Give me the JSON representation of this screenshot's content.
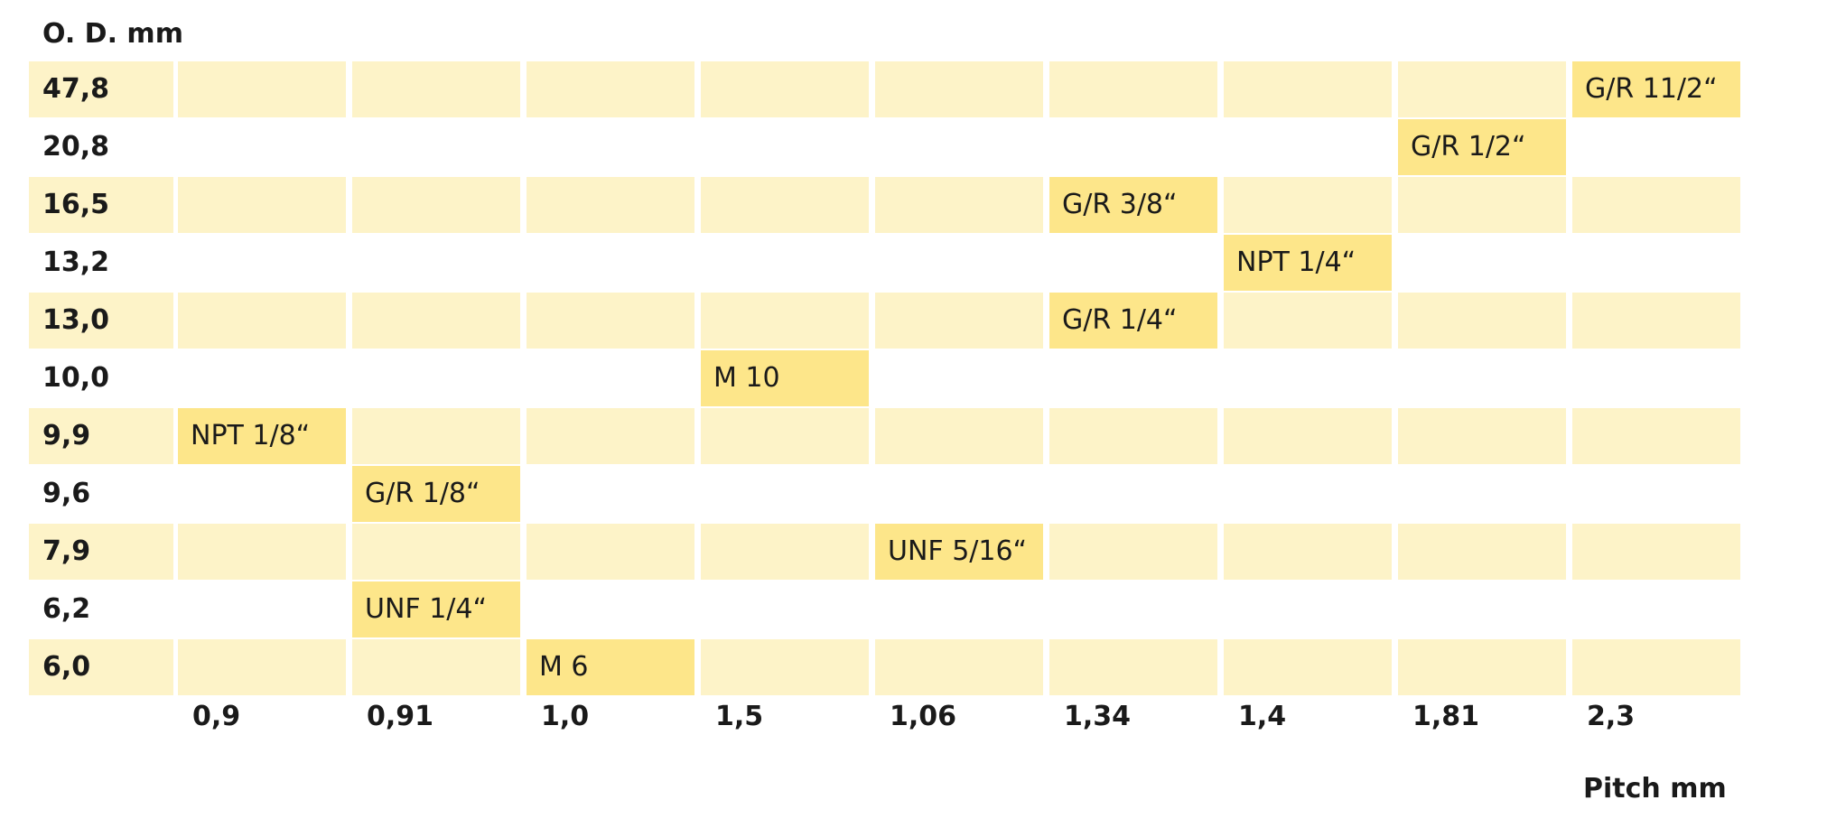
{
  "chart_data": {
    "type": "heatmap",
    "ylabel": "O. D. mm",
    "xlabel": "Pitch mm",
    "columns": [
      "0,9",
      "0,91",
      "1,0",
      "1,5",
      "1,06",
      "1,34",
      "1,4",
      "1,81",
      "2,3"
    ],
    "rows": [
      "47,8",
      "20,8",
      "16,5",
      "13,2",
      "13,0",
      "10,0",
      "9,9",
      "9,6",
      "7,9",
      "6,2",
      "6,0"
    ],
    "cells": [
      {
        "row": "47,8",
        "col": "2,3",
        "label": "G/R 11/2“"
      },
      {
        "row": "20,8",
        "col": "1,81",
        "label": "G/R 1/2“"
      },
      {
        "row": "16,5",
        "col": "1,34",
        "label": "G/R 3/8“"
      },
      {
        "row": "13,2",
        "col": "1,4",
        "label": "NPT 1/4“"
      },
      {
        "row": "13,0",
        "col": "1,34",
        "label": "G/R 1/4“"
      },
      {
        "row": "10,0",
        "col": "1,5",
        "label": "M 10"
      },
      {
        "row": "9,9",
        "col": "0,9",
        "label": "NPT 1/8“"
      },
      {
        "row": "9,6",
        "col": "0,91",
        "label": "G/R 1/8“"
      },
      {
        "row": "7,9",
        "col": "1,06",
        "label": "UNF 5/16“"
      },
      {
        "row": "6,2",
        "col": "0,91",
        "label": "UNF 1/4“"
      },
      {
        "row": "6,0",
        "col": "1,0",
        "label": "M 6"
      }
    ],
    "colors": {
      "band": "#fdf3c8",
      "highlight": "#fde68a",
      "background": "#ffffff"
    }
  }
}
